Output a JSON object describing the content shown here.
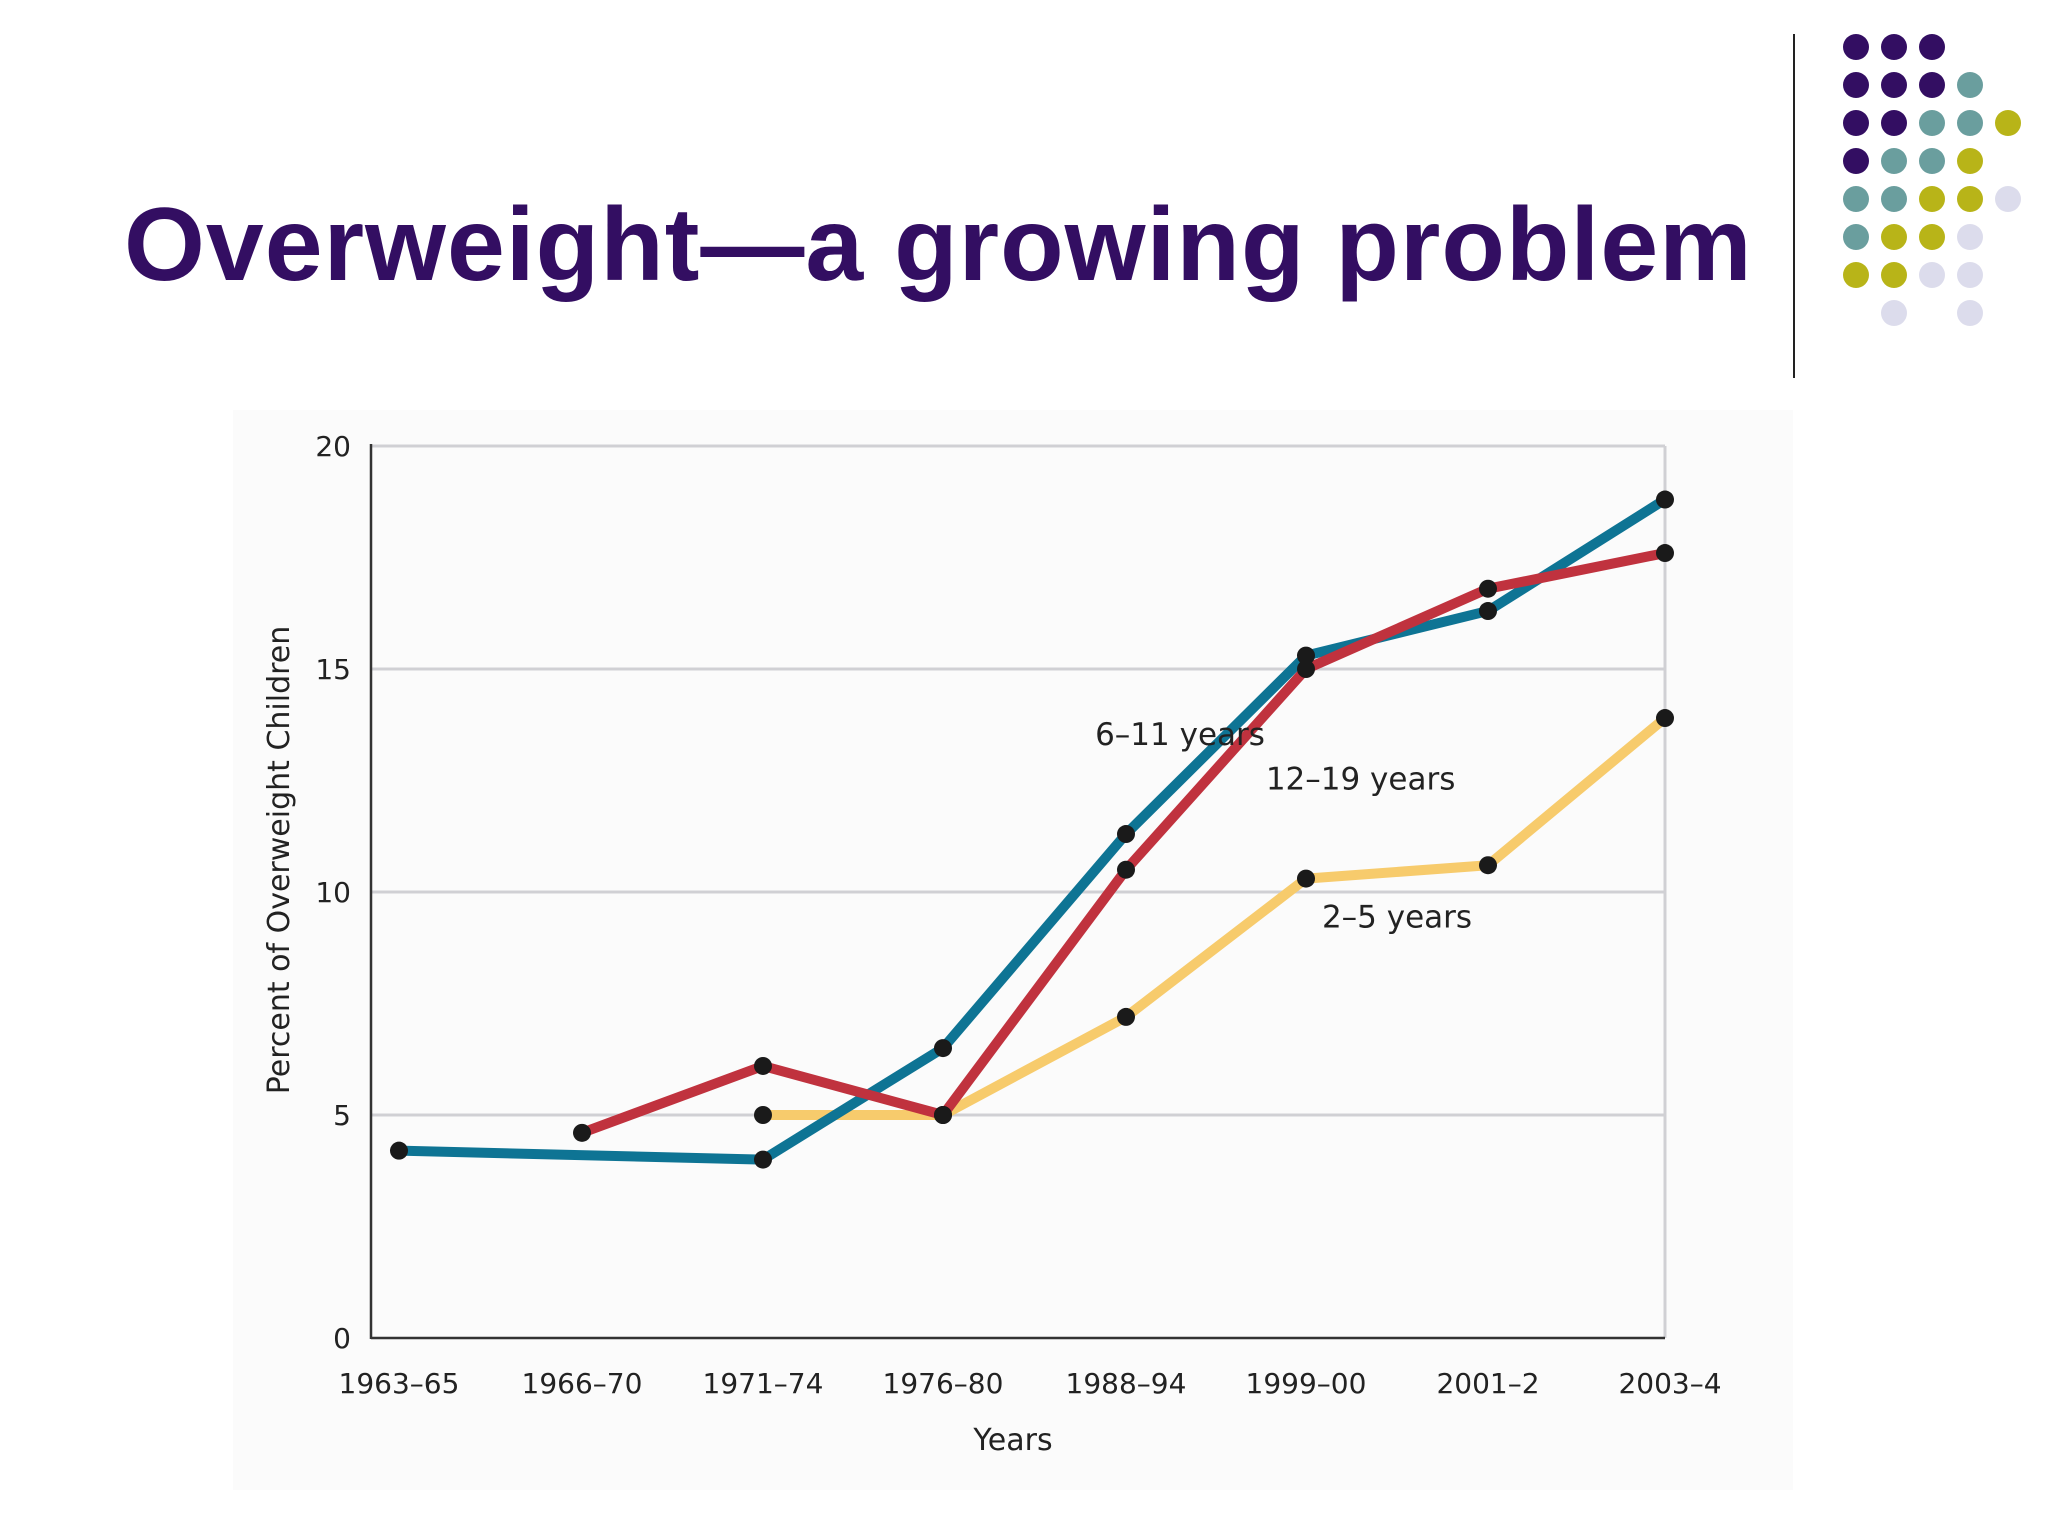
{
  "slide": {
    "title": "Overweight—a growing problem"
  },
  "decoration": {
    "dot_colors": {
      "purple": "#330e62",
      "teal": "#6a9e9e",
      "olive": "#b8b418",
      "lavender": "#dcdcec"
    },
    "dot_rows": [
      [
        "purple",
        "purple",
        "purple",
        "",
        "",
        ""
      ],
      [
        "purple",
        "purple",
        "purple",
        "teal",
        "",
        ""
      ],
      [
        "purple",
        "purple",
        "teal",
        "teal",
        "olive",
        ""
      ],
      [
        "purple",
        "teal",
        "teal",
        "olive",
        "",
        ""
      ],
      [
        "teal",
        "teal",
        "olive",
        "olive",
        "lavender",
        ""
      ],
      [
        "teal",
        "olive",
        "olive",
        "lavender",
        "",
        ""
      ],
      [
        "olive",
        "olive",
        "lavender",
        "lavender",
        "",
        ""
      ],
      [
        "",
        "lavender",
        "",
        "lavender",
        "",
        ""
      ]
    ]
  },
  "chart_data": {
    "type": "line",
    "title": "",
    "xlabel": "Years",
    "ylabel": "Percent of Overweight Children",
    "categories": [
      "1963–65",
      "1966–70",
      "1971–74",
      "1976–80",
      "1988–94",
      "1999–00",
      "2001–2",
      "2003–4"
    ],
    "ylim": [
      0,
      20
    ],
    "yticks": [
      0,
      5,
      10,
      15,
      20
    ],
    "grid": "horizontal",
    "legend": "none",
    "series": [
      {
        "name": "6–11 years",
        "color": "#0e7494",
        "values": [
          4.2,
          null,
          4.0,
          6.5,
          11.3,
          15.3,
          16.3,
          18.8
        ]
      },
      {
        "name": "12–19 years",
        "color": "#c0323e",
        "values": [
          null,
          4.6,
          6.1,
          5.0,
          10.5,
          15.0,
          16.8,
          17.6
        ]
      },
      {
        "name": "2–5 years",
        "color": "#f7cb6c",
        "values": [
          null,
          null,
          5.0,
          5.0,
          7.2,
          10.3,
          10.6,
          13.9
        ]
      }
    ],
    "series_labels": [
      {
        "text": "6–11 years",
        "anchor_x": 4.3,
        "anchor_y": 13.3
      },
      {
        "text": "12–19 years",
        "anchor_x": 5.3,
        "anchor_y": 12.3
      },
      {
        "text": "2–5 years",
        "anchor_x": 5.5,
        "anchor_y": 9.2
      }
    ]
  }
}
